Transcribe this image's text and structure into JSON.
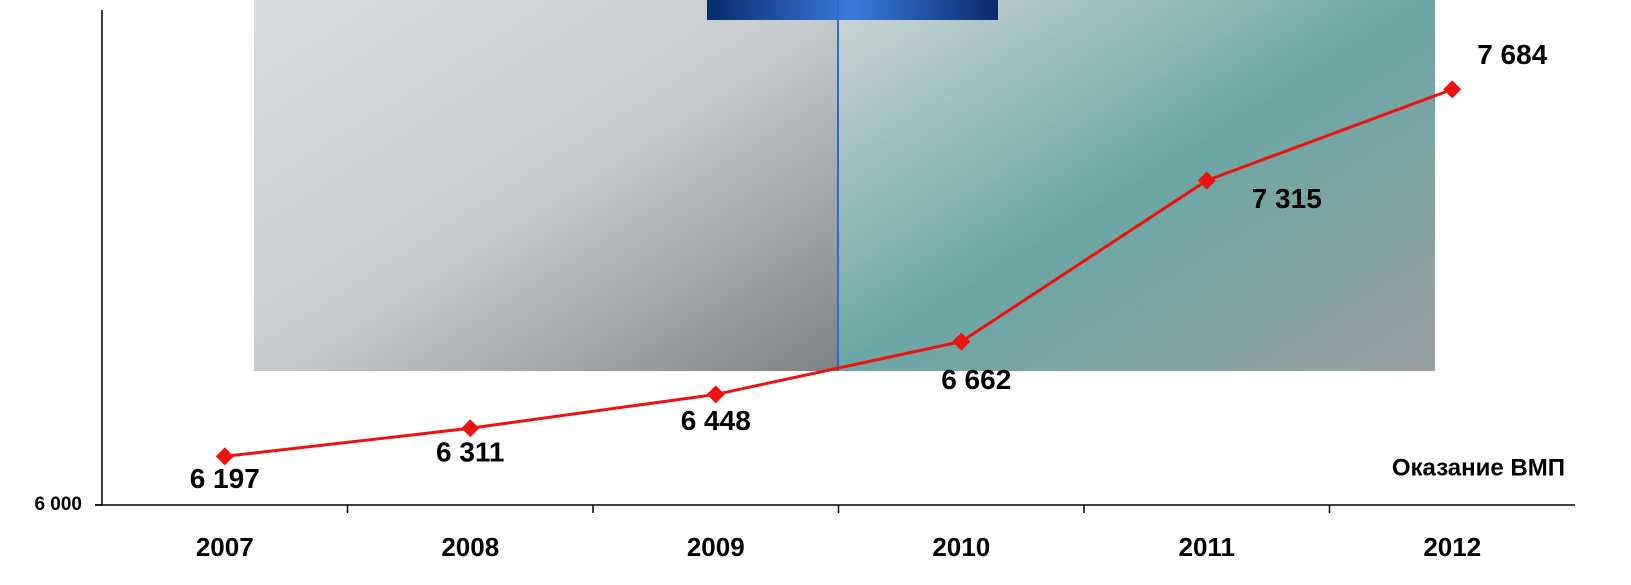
{
  "chart_data": {
    "type": "line",
    "categories": [
      "2007",
      "2008",
      "2009",
      "2010",
      "2011",
      "2012"
    ],
    "series": [
      {
        "name": "Оказание ВМП",
        "color": "#ee1111",
        "values": [
          6197,
          6311,
          6448,
          6662,
          7315,
          7684
        ],
        "value_labels": [
          "6 197",
          "6 311",
          "6 448",
          "6 662",
          "7 315",
          "7 684"
        ]
      }
    ],
    "ylim": [
      6000,
      8000
    ],
    "yticks": [
      {
        "value": 6000,
        "label": "6 000"
      }
    ]
  }
}
